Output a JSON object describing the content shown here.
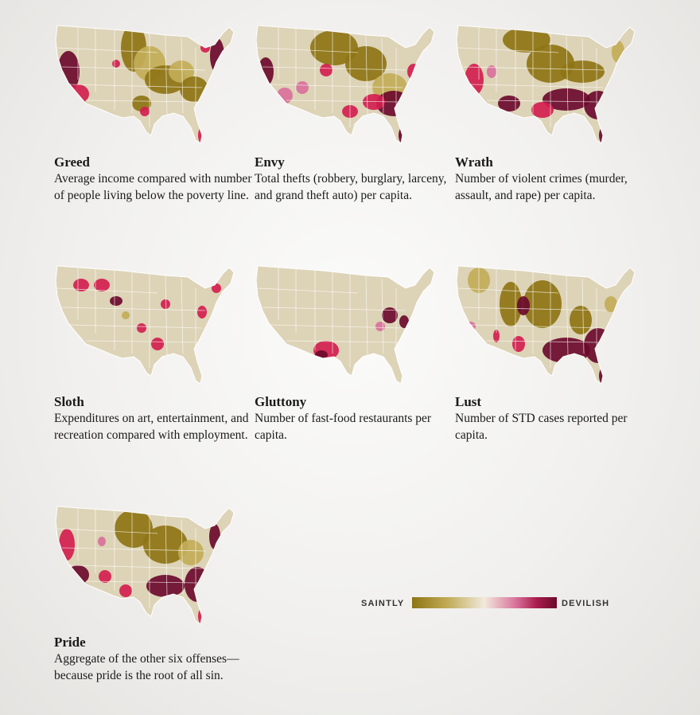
{
  "colors": {
    "land": "#ddd3b7",
    "border": "#ffffff",
    "saintly": "#8e7414",
    "saintly_light": "#c2ac58",
    "mid": "#f2e9dc",
    "pink": "#d9709a",
    "red": "#d31e4f",
    "devilish": "#6b0a2c"
  },
  "maps": [
    {
      "id": "greed",
      "title": "Greed",
      "description": "Average income compared with number of people living below the poverty line."
    },
    {
      "id": "envy",
      "title": "Envy",
      "description": "Total thefts (robbery, burglary, larceny, and grand theft auto) per capita."
    },
    {
      "id": "wrath",
      "title": "Wrath",
      "description": "Number of violent crimes (murder, assault, and rape) per capita."
    },
    {
      "id": "sloth",
      "title": "Sloth",
      "description": "Expenditures on art, entertainment, and recreation compared with employment."
    },
    {
      "id": "gluttony",
      "title": "Gluttony",
      "description": "Number of fast-food restaurants per capita."
    },
    {
      "id": "lust",
      "title": "Lust",
      "description": "Number of STD cases reported per capita."
    },
    {
      "id": "pride",
      "title": "Pride",
      "description": "Aggregate of the other six offenses—because pride is the root of all sin."
    }
  ],
  "legend": {
    "low_label": "SAINTLY",
    "high_label": "DEVILISH"
  }
}
